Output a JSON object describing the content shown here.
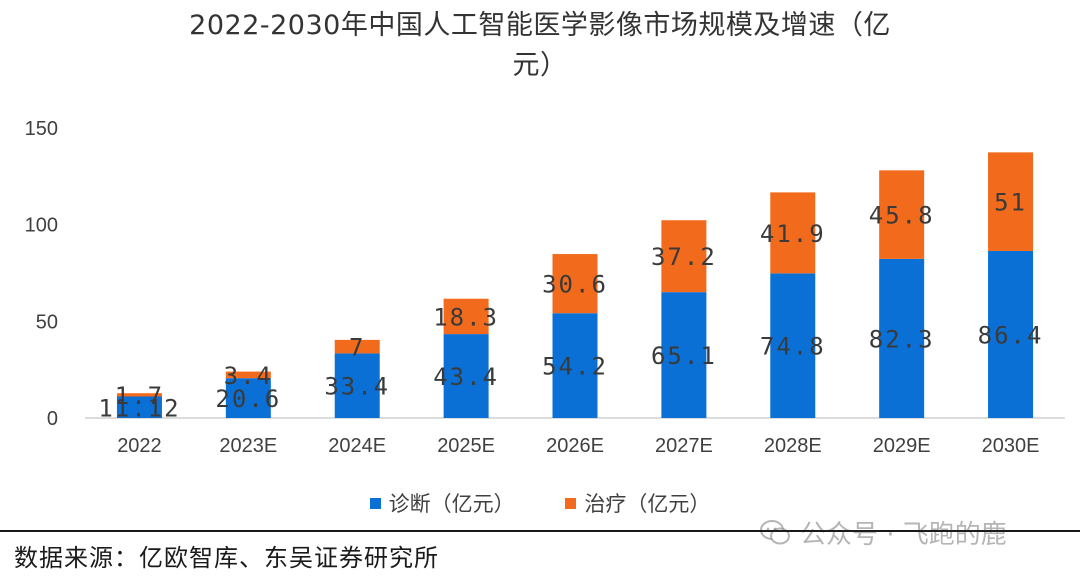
{
  "chart_data": {
    "type": "bar",
    "stacked": true,
    "title_line1": "2022-2030年中国人工智能医学影像市场规模及增速（亿",
    "title_line2": "元）",
    "categories": [
      "2022",
      "2023E",
      "2024E",
      "2025E",
      "2026E",
      "2027E",
      "2028E",
      "2029E",
      "2030E"
    ],
    "series": [
      {
        "name": "诊断（亿元）",
        "color": "#0a70d6",
        "values": [
          11.12,
          20.6,
          33.4,
          43.4,
          54.2,
          65.1,
          74.8,
          82.3,
          86.4
        ],
        "labels": [
          "11.12",
          "20.6",
          "33.4",
          "43.4",
          "54.2",
          "65.1",
          "74.8",
          "82.3",
          "86.4"
        ]
      },
      {
        "name": "治疗（亿元）",
        "color": "#f26b1d",
        "values": [
          1.7,
          3.4,
          7,
          18.3,
          30.6,
          37.2,
          41.9,
          45.8,
          51
        ],
        "labels": [
          "1.7",
          "3.4",
          "7",
          "18.3",
          "30.6",
          "37.2",
          "41.9",
          "45.8",
          "51"
        ]
      }
    ],
    "ylim": [
      0,
      150
    ],
    "yticks": [
      0,
      50,
      100,
      150
    ],
    "grid": false,
    "legend_position": "bottom"
  },
  "source_text": "数据来源：亿欧智库、东吴证券研究所",
  "watermark": {
    "text": "公众号 · 飞跑的鹿",
    "icon": "wechat-icon"
  }
}
